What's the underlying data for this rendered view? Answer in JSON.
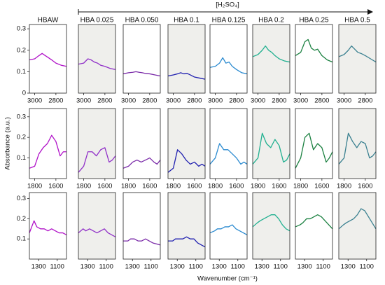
{
  "figure": {
    "arrow_label": "[H₂SO₄]",
    "ylabel": "Absorbance (a.u.)",
    "xlabel": "Wavenumber (cm⁻¹)"
  },
  "chart_data": [
    {
      "type": "line",
      "title": "HBAW",
      "facecolor": "#ffffff",
      "color": "#b010c8",
      "x": [
        3050,
        3000,
        2960,
        2930,
        2900,
        2870,
        2840,
        2800,
        2750,
        2700
      ],
      "values": [
        0.155,
        0.16,
        0.175,
        0.185,
        0.175,
        0.165,
        0.155,
        0.14,
        0.13,
        0.125
      ],
      "xlim": [
        3050,
        2700
      ],
      "xticks": [
        3000,
        2800
      ],
      "ylim": [
        0,
        0.32
      ],
      "yticks": [
        0,
        0.1,
        0.2,
        0.3
      ]
    },
    {
      "type": "line",
      "title": "HBA 0.025",
      "facecolor": "#efefec",
      "color": "#9030c8",
      "x": [
        3050,
        3000,
        2960,
        2930,
        2900,
        2870,
        2840,
        2800,
        2750,
        2700
      ],
      "values": [
        0.135,
        0.14,
        0.16,
        0.155,
        0.145,
        0.14,
        0.13,
        0.125,
        0.115,
        0.11
      ],
      "xlim": [
        3050,
        2700
      ],
      "xticks": [
        3000,
        2800
      ],
      "ylim": [
        0,
        0.32
      ]
    },
    {
      "type": "line",
      "title": "HBA 0.050",
      "facecolor": "#ffffff",
      "color": "#7a2aa8",
      "x": [
        3050,
        3000,
        2960,
        2930,
        2900,
        2870,
        2840,
        2800,
        2750,
        2700
      ],
      "values": [
        0.09,
        0.095,
        0.097,
        0.1,
        0.097,
        0.095,
        0.092,
        0.09,
        0.085,
        0.08
      ],
      "xlim": [
        3050,
        2700
      ],
      "xticks": [
        3000,
        2800
      ],
      "ylim": [
        0,
        0.32
      ]
    },
    {
      "type": "line",
      "title": "HBA 0.1",
      "facecolor": "#efefec",
      "color": "#2020b0",
      "x": [
        3050,
        3000,
        2960,
        2930,
        2900,
        2870,
        2840,
        2800,
        2750,
        2700
      ],
      "values": [
        0.08,
        0.085,
        0.09,
        0.095,
        0.09,
        0.092,
        0.085,
        0.075,
        0.07,
        0.065
      ],
      "xlim": [
        3050,
        2700
      ],
      "xticks": [
        3000,
        2800
      ],
      "ylim": [
        0,
        0.32
      ]
    },
    {
      "type": "line",
      "title": "HBA 0.125",
      "facecolor": "#ffffff",
      "color": "#2a8ad0",
      "x": [
        3050,
        3000,
        2960,
        2930,
        2900,
        2870,
        2840,
        2800,
        2750,
        2700
      ],
      "values": [
        0.12,
        0.125,
        0.14,
        0.165,
        0.14,
        0.145,
        0.125,
        0.11,
        0.095,
        0.09
      ],
      "xlim": [
        3050,
        2700
      ],
      "xticks": [
        3000,
        2800
      ],
      "ylim": [
        0,
        0.32
      ]
    },
    {
      "type": "line",
      "title": "HBA 0.2",
      "facecolor": "#efefec",
      "color": "#20b090",
      "x": [
        3050,
        3000,
        2960,
        2930,
        2900,
        2870,
        2840,
        2800,
        2750,
        2700
      ],
      "values": [
        0.17,
        0.18,
        0.2,
        0.22,
        0.2,
        0.19,
        0.175,
        0.16,
        0.15,
        0.145
      ],
      "xlim": [
        3050,
        2700
      ],
      "xticks": [
        3000,
        2800
      ],
      "ylim": [
        0,
        0.32
      ]
    },
    {
      "type": "line",
      "title": "HBA 0.25",
      "facecolor": "#ffffff",
      "color": "#1a8040",
      "x": [
        3050,
        3000,
        2960,
        2930,
        2900,
        2870,
        2840,
        2800,
        2750,
        2700
      ],
      "values": [
        0.175,
        0.19,
        0.24,
        0.25,
        0.21,
        0.2,
        0.205,
        0.175,
        0.155,
        0.145
      ],
      "xlim": [
        3050,
        2700
      ],
      "xticks": [
        3000,
        2800
      ],
      "ylim": [
        0,
        0.32
      ]
    },
    {
      "type": "line",
      "title": "HBA 0.5",
      "facecolor": "#efefec",
      "color": "#3a8090",
      "x": [
        3050,
        3000,
        2960,
        2930,
        2900,
        2870,
        2840,
        2800,
        2750,
        2700
      ],
      "values": [
        0.17,
        0.18,
        0.2,
        0.22,
        0.205,
        0.19,
        0.185,
        0.175,
        0.16,
        0.145
      ],
      "xlim": [
        3050,
        2700
      ],
      "xticks": [
        3000,
        2800
      ],
      "ylim": [
        0,
        0.32
      ]
    },
    {
      "type": "line",
      "facecolor": "#ffffff",
      "color": "#b010c8",
      "x": [
        1850,
        1800,
        1760,
        1720,
        1680,
        1640,
        1600,
        1560,
        1530,
        1500
      ],
      "values": [
        0.05,
        0.06,
        0.12,
        0.15,
        0.17,
        0.21,
        0.18,
        0.11,
        0.13,
        0.13
      ],
      "xlim": [
        1850,
        1500
      ],
      "xticks": [
        1800,
        1600
      ],
      "ylim": [
        0,
        0.34
      ],
      "yticks": [
        0.1,
        0.2,
        0.3
      ]
    },
    {
      "type": "line",
      "facecolor": "#efefec",
      "color": "#9030c8",
      "x": [
        1850,
        1800,
        1760,
        1720,
        1680,
        1640,
        1600,
        1560,
        1530,
        1500
      ],
      "values": [
        0.03,
        0.06,
        0.13,
        0.13,
        0.11,
        0.14,
        0.15,
        0.08,
        0.09,
        0.11
      ],
      "xlim": [
        1850,
        1500
      ],
      "xticks": [
        1800,
        1600
      ],
      "ylim": [
        0,
        0.34
      ]
    },
    {
      "type": "line",
      "facecolor": "#ffffff",
      "color": "#7a2aa8",
      "x": [
        1850,
        1800,
        1760,
        1720,
        1680,
        1640,
        1600,
        1560,
        1530,
        1500
      ],
      "values": [
        0.05,
        0.06,
        0.08,
        0.09,
        0.08,
        0.09,
        0.1,
        0.08,
        0.07,
        0.09
      ],
      "xlim": [
        1850,
        1500
      ],
      "xticks": [
        1800,
        1600
      ],
      "ylim": [
        0,
        0.34
      ]
    },
    {
      "type": "line",
      "facecolor": "#efefec",
      "color": "#2020b0",
      "x": [
        1850,
        1800,
        1760,
        1720,
        1680,
        1640,
        1600,
        1560,
        1530,
        1500
      ],
      "values": [
        0.03,
        0.05,
        0.14,
        0.12,
        0.09,
        0.07,
        0.08,
        0.06,
        0.07,
        0.06
      ],
      "xlim": [
        1850,
        1500
      ],
      "xticks": [
        1800,
        1600
      ],
      "ylim": [
        0,
        0.34
      ]
    },
    {
      "type": "line",
      "facecolor": "#ffffff",
      "color": "#2a8ad0",
      "x": [
        1850,
        1800,
        1760,
        1720,
        1680,
        1640,
        1600,
        1560,
        1530,
        1500
      ],
      "values": [
        0.07,
        0.1,
        0.17,
        0.14,
        0.14,
        0.12,
        0.1,
        0.07,
        0.08,
        0.07
      ],
      "xlim": [
        1850,
        1500
      ],
      "xticks": [
        1800,
        1600
      ],
      "ylim": [
        0,
        0.34
      ]
    },
    {
      "type": "line",
      "facecolor": "#efefec",
      "color": "#20b090",
      "x": [
        1850,
        1800,
        1760,
        1720,
        1680,
        1640,
        1600,
        1560,
        1530,
        1500
      ],
      "values": [
        0.07,
        0.1,
        0.22,
        0.17,
        0.15,
        0.19,
        0.16,
        0.08,
        0.09,
        0.12
      ],
      "xlim": [
        1850,
        1500
      ],
      "xticks": [
        1800,
        1600
      ],
      "ylim": [
        0,
        0.34
      ]
    },
    {
      "type": "line",
      "facecolor": "#ffffff",
      "color": "#1a8040",
      "x": [
        1850,
        1800,
        1760,
        1720,
        1680,
        1640,
        1600,
        1560,
        1530,
        1500
      ],
      "values": [
        0.05,
        0.1,
        0.2,
        0.22,
        0.14,
        0.17,
        0.15,
        0.08,
        0.1,
        0.13
      ],
      "xlim": [
        1850,
        1500
      ],
      "xticks": [
        1800,
        1600
      ],
      "ylim": [
        0,
        0.34
      ]
    },
    {
      "type": "line",
      "facecolor": "#efefec",
      "color": "#3a8090",
      "x": [
        1850,
        1800,
        1760,
        1720,
        1680,
        1640,
        1600,
        1560,
        1530,
        1500
      ],
      "values": [
        0.07,
        0.1,
        0.22,
        0.18,
        0.15,
        0.18,
        0.17,
        0.1,
        0.11,
        0.13
      ],
      "xlim": [
        1850,
        1500
      ],
      "xticks": [
        1800,
        1600
      ],
      "ylim": [
        0,
        0.34
      ]
    },
    {
      "type": "line",
      "facecolor": "#ffffff",
      "color": "#b010c8",
      "x": [
        1400,
        1350,
        1320,
        1280,
        1240,
        1200,
        1160,
        1120,
        1080,
        1040,
        1000
      ],
      "values": [
        0.13,
        0.19,
        0.16,
        0.15,
        0.15,
        0.14,
        0.15,
        0.14,
        0.13,
        0.13,
        0.12
      ],
      "xlim": [
        1400,
        1000
      ],
      "xticks": [
        1300,
        1100
      ],
      "ylim": [
        0,
        0.33
      ],
      "yticks": [
        0.1,
        0.2,
        0.3
      ]
    },
    {
      "type": "line",
      "facecolor": "#efefec",
      "color": "#9030c8",
      "x": [
        1400,
        1350,
        1320,
        1280,
        1240,
        1200,
        1160,
        1120,
        1080,
        1040,
        1000
      ],
      "values": [
        0.13,
        0.15,
        0.14,
        0.15,
        0.14,
        0.13,
        0.14,
        0.15,
        0.13,
        0.12,
        0.11
      ],
      "xlim": [
        1400,
        1000
      ],
      "xticks": [
        1300,
        1100
      ],
      "ylim": [
        0,
        0.33
      ]
    },
    {
      "type": "line",
      "facecolor": "#ffffff",
      "color": "#7a2aa8",
      "x": [
        1400,
        1350,
        1320,
        1280,
        1240,
        1200,
        1160,
        1120,
        1080,
        1040,
        1000
      ],
      "values": [
        0.09,
        0.09,
        0.1,
        0.1,
        0.09,
        0.09,
        0.1,
        0.09,
        0.08,
        0.075,
        0.07
      ],
      "xlim": [
        1400,
        1000
      ],
      "xticks": [
        1300,
        1100
      ],
      "ylim": [
        0,
        0.33
      ]
    },
    {
      "type": "line",
      "facecolor": "#efefec",
      "color": "#2020b0",
      "x": [
        1400,
        1350,
        1320,
        1280,
        1240,
        1200,
        1160,
        1120,
        1080,
        1040,
        1000
      ],
      "values": [
        0.09,
        0.09,
        0.1,
        0.1,
        0.1,
        0.11,
        0.1,
        0.1,
        0.08,
        0.07,
        0.06
      ],
      "xlim": [
        1400,
        1000
      ],
      "xticks": [
        1300,
        1100
      ],
      "ylim": [
        0,
        0.33
      ]
    },
    {
      "type": "line",
      "facecolor": "#ffffff",
      "color": "#2a8ad0",
      "x": [
        1400,
        1350,
        1320,
        1280,
        1240,
        1200,
        1160,
        1120,
        1080,
        1040,
        1000
      ],
      "values": [
        0.13,
        0.14,
        0.15,
        0.15,
        0.16,
        0.16,
        0.17,
        0.15,
        0.14,
        0.13,
        0.12
      ],
      "xlim": [
        1400,
        1000
      ],
      "xticks": [
        1300,
        1100
      ],
      "ylim": [
        0,
        0.33
      ]
    },
    {
      "type": "line",
      "facecolor": "#efefec",
      "color": "#20b090",
      "x": [
        1400,
        1350,
        1320,
        1280,
        1240,
        1200,
        1160,
        1120,
        1080,
        1040,
        1000
      ],
      "values": [
        0.16,
        0.18,
        0.19,
        0.2,
        0.21,
        0.22,
        0.22,
        0.2,
        0.17,
        0.15,
        0.14
      ],
      "xlim": [
        1400,
        1000
      ],
      "xticks": [
        1300,
        1100
      ],
      "ylim": [
        0,
        0.33
      ]
    },
    {
      "type": "line",
      "facecolor": "#ffffff",
      "color": "#1a8040",
      "x": [
        1400,
        1350,
        1320,
        1280,
        1240,
        1200,
        1160,
        1120,
        1080,
        1040,
        1000
      ],
      "values": [
        0.16,
        0.17,
        0.18,
        0.2,
        0.2,
        0.21,
        0.22,
        0.21,
        0.19,
        0.17,
        0.15
      ],
      "xlim": [
        1400,
        1000
      ],
      "xticks": [
        1300,
        1100
      ],
      "ylim": [
        0,
        0.33
      ]
    },
    {
      "type": "line",
      "facecolor": "#efefec",
      "color": "#3a8090",
      "x": [
        1400,
        1350,
        1320,
        1280,
        1240,
        1200,
        1160,
        1120,
        1080,
        1040,
        1000
      ],
      "values": [
        0.15,
        0.17,
        0.18,
        0.19,
        0.2,
        0.22,
        0.25,
        0.24,
        0.21,
        0.18,
        0.15
      ],
      "xlim": [
        1400,
        1000
      ],
      "xticks": [
        1300,
        1100
      ],
      "ylim": [
        0,
        0.33
      ]
    }
  ]
}
